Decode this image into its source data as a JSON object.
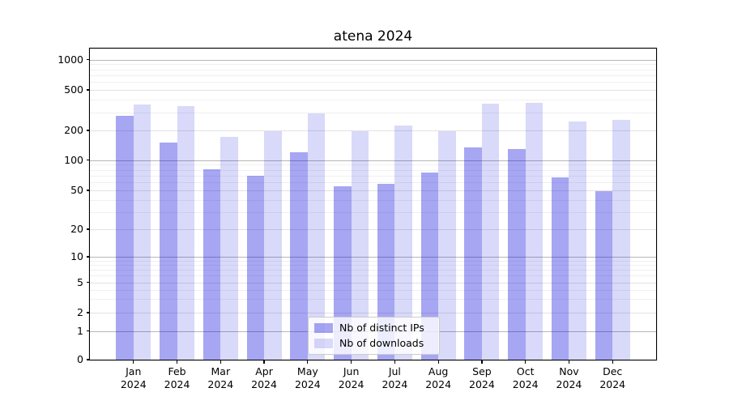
{
  "chart_data": {
    "type": "bar",
    "title": "atena 2024",
    "year": "2024",
    "categories": [
      "Jan",
      "Feb",
      "Mar",
      "Apr",
      "May",
      "Jun",
      "Jul",
      "Aug",
      "Sep",
      "Oct",
      "Nov",
      "Dec"
    ],
    "series": [
      {
        "name": "Nb of distinct IPs",
        "color": "rgba(0,0,222,0.35)",
        "values": [
          280,
          150,
          81,
          70,
          120,
          55,
          58,
          75,
          135,
          130,
          67,
          49
        ]
      },
      {
        "name": "Nb of downloads",
        "color": "rgba(0,0,215,0.15)",
        "values": [
          360,
          345,
          173,
          195,
          295,
          195,
          222,
          198,
          365,
          375,
          245,
          255
        ]
      }
    ],
    "yscale": "symlog",
    "yticks": [
      0,
      1,
      2,
      5,
      10,
      20,
      50,
      100,
      200,
      500,
      1000
    ],
    "ylim": [
      0,
      1300
    ],
    "xlim": [
      -1,
      12
    ],
    "grid": "both",
    "legend_position": "lower center",
    "colors": {
      "decade_grid": "#b6b6b6",
      "labeled_grid": "#e2e2e2",
      "minor_grid": "#f0f0f0",
      "spine": "#000000",
      "text": "#000000",
      "background": "#ffffff"
    }
  }
}
